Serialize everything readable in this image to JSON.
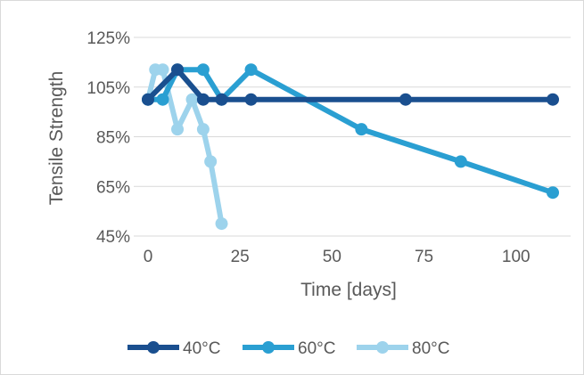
{
  "chart_data": {
    "type": "line",
    "title": "",
    "xlabel": "Time [days]",
    "ylabel": "Tensile Strength",
    "xlim": [
      0,
      110
    ],
    "ylim": [
      45,
      125
    ],
    "x_ticks": [
      0,
      25,
      50,
      75,
      100
    ],
    "x_tick_labels": [
      "0",
      "25",
      "50",
      "75",
      "100"
    ],
    "y_ticks": [
      45,
      65,
      85,
      105,
      125
    ],
    "y_tick_labels": [
      "45%",
      "65%",
      "85%",
      "105%",
      "125%"
    ],
    "grid": "horizontal",
    "legend_position": "bottom",
    "series": [
      {
        "name": "40°C",
        "color": "#1a4f8f",
        "points": [
          [
            0,
            100
          ],
          [
            8,
            112
          ],
          [
            15,
            100
          ],
          [
            20,
            100
          ],
          [
            28,
            100
          ],
          [
            70,
            100
          ],
          [
            110,
            100
          ]
        ]
      },
      {
        "name": "60°C",
        "color": "#2a9fd2",
        "points": [
          [
            0,
            100
          ],
          [
            4,
            100
          ],
          [
            8,
            112
          ],
          [
            15,
            112
          ],
          [
            20,
            100
          ],
          [
            28,
            112
          ],
          [
            58,
            88
          ],
          [
            85,
            75
          ],
          [
            110,
            62.5
          ]
        ]
      },
      {
        "name": "80°C",
        "color": "#9dd3ec",
        "points": [
          [
            0,
            100
          ],
          [
            2,
            112
          ],
          [
            4,
            112
          ],
          [
            8,
            88
          ],
          [
            12,
            100
          ],
          [
            15,
            88
          ],
          [
            17,
            75
          ],
          [
            20,
            50
          ]
        ]
      }
    ]
  }
}
